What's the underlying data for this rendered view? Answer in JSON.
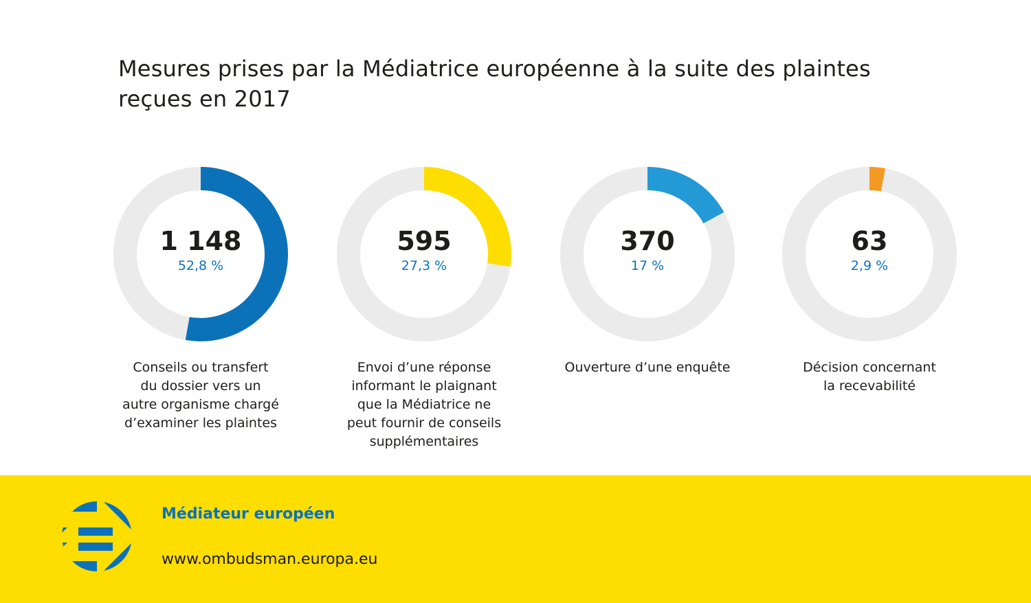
{
  "title": "Mesures prises par la Médiatrice européenne à la suite des plaintes reçues en 2017",
  "chart_data": {
    "type": "pie",
    "subtype": "donut-small-multiples",
    "title": "Mesures prises par la Médiatrice européenne à la suite des plaintes reçues en 2017",
    "track_color": "#ebebeb",
    "items": [
      {
        "count": 1148,
        "count_label": "1 148",
        "percent": 52.8,
        "percent_label": "52,8 %",
        "color": "#0b72b9",
        "label": "Conseils ou transfert du dossier vers un autre organisme chargé d’examiner les plaintes",
        "label_lines": [
          "Conseils ou transfert",
          "du dossier vers un",
          "autre organisme chargé",
          "d’examiner les plaintes"
        ]
      },
      {
        "count": 595,
        "count_label": "595",
        "percent": 27.3,
        "percent_label": "27,3 %",
        "color": "#fedd00",
        "label": "Envoi d’une réponse informant le plaignant que la Médiatrice ne peut fournir de conseils supplémentaires",
        "label_lines": [
          "Envoi d’une réponse",
          "informant le plaignant",
          "que la Médiatrice ne",
          "peut fournir de conseils",
          "supplémentaires"
        ]
      },
      {
        "count": 370,
        "count_label": "370",
        "percent": 17,
        "percent_label": "17 %",
        "color": "#2399d6",
        "label": "Ouverture d’une enquête",
        "label_lines": [
          "Ouverture d’une enquête"
        ]
      },
      {
        "count": 63,
        "count_label": "63",
        "percent": 2.9,
        "percent_label": "2,9 %",
        "color": "#f39a23",
        "label": "Décision concernant la recevabilité",
        "label_lines": [
          "Décision concernant",
          "la recevabilité"
        ]
      }
    ]
  },
  "footer": {
    "brand": "Médiateur européen",
    "url": "www.ombudsman.europa.eu",
    "logo_icon": "european-ombudsman-logo-icon",
    "background": "#fedd00",
    "brand_color": "#0b72b9"
  }
}
